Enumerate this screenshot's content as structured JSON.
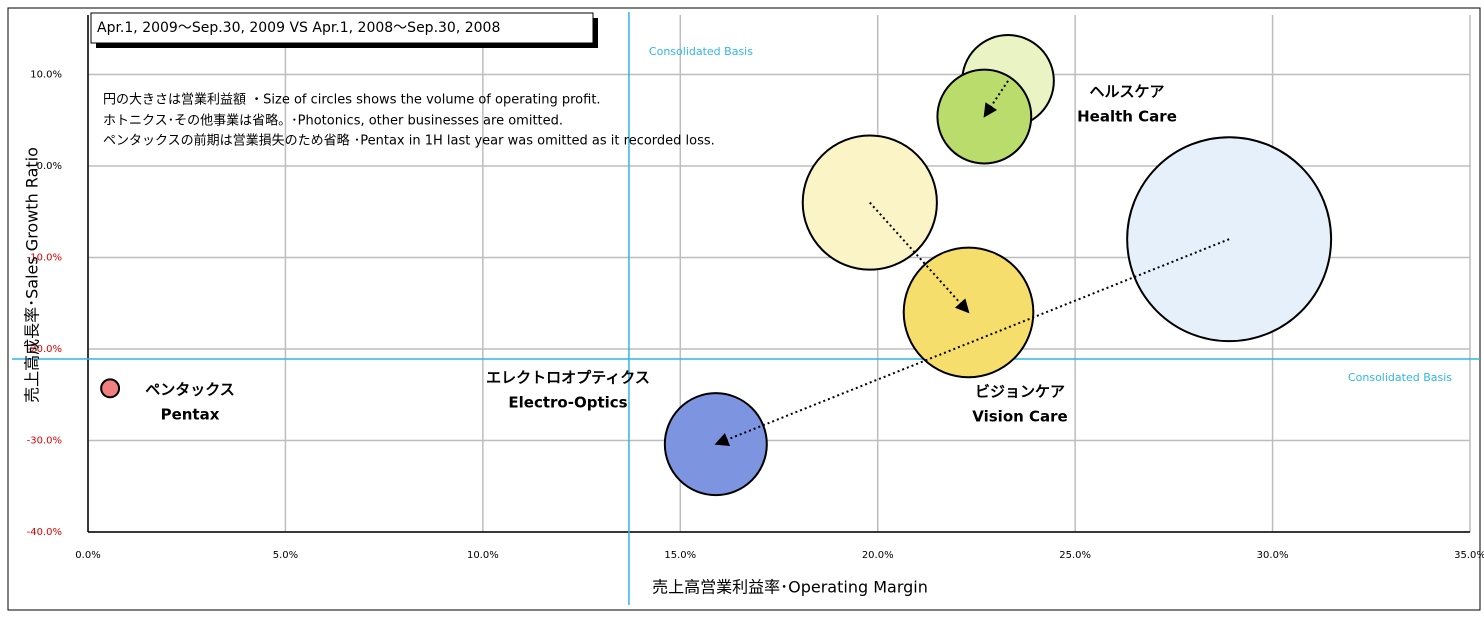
{
  "chart_data": {
    "type": "bubble",
    "title": "Apr.1, 2009〜Sep.30, 2009 VS Apr.1, 2008〜Sep.30, 2008",
    "notes": [
      "円の大きさは営業利益額 ・Size of circles shows the volume of operating profit.",
      "ホトニクス･その他事業は省略。･Photonics, other businesses are omitted.",
      "ペンタックスの前期は営業損失のため省略 ･Pentax in 1H last year was omitted as it recorded loss."
    ],
    "x_label": "売上高営業利益率･Operating Margin",
    "y_label": "売上高成長率･Sales Growth Ratio",
    "xlim": [
      0,
      35
    ],
    "ylim": [
      -40,
      16.5
    ],
    "xticks": [
      {
        "value": 0,
        "label": "0.0%"
      },
      {
        "value": 5,
        "label": "5.0%"
      },
      {
        "value": 10,
        "label": "10.0%"
      },
      {
        "value": 15,
        "label": "15.0%"
      },
      {
        "value": 20,
        "label": "20.0%"
      },
      {
        "value": 25,
        "label": "25.0%"
      },
      {
        "value": 30,
        "label": "30.0%"
      },
      {
        "value": 35,
        "label": "35.0%"
      }
    ],
    "yticks": [
      {
        "value": 10,
        "label": "10.0%"
      },
      {
        "value": 0,
        "label": "0.0%"
      },
      {
        "value": -10,
        "label": "-10.0%"
      },
      {
        "value": -20,
        "label": "-20.0%"
      },
      {
        "value": -30,
        "label": "-30.0%"
      },
      {
        "value": -40,
        "label": "-40.0%"
      }
    ],
    "grid": true,
    "reference_lines": [
      {
        "axis": "x",
        "value": 13.7,
        "label": "Consolidated Basis"
      },
      {
        "axis": "y",
        "value": -21.1,
        "label": "Consolidated Basis"
      }
    ],
    "series": [
      {
        "name": "Health Care",
        "name_ja": "ヘルスケア",
        "colors": [
          "#e9f3c4",
          "#b9dc6c"
        ],
        "x": [
          23.3,
          22.7
        ],
        "values": [
          9.3,
          5.4
        ],
        "sizes": [
          21,
          22
        ]
      },
      {
        "name": "Vision Care",
        "name_ja": "ビジョンケア",
        "colors": [
          "#fbf4c6",
          "#f6de6c"
        ],
        "x": [
          19.8,
          22.3
        ],
        "values": [
          -4.0,
          -16.0
        ],
        "sizes": [
          45,
          42
        ]
      },
      {
        "name": "Electro-Optics",
        "name_ja": "エレクトロオプティクス",
        "colors": [
          "#e5f0fa",
          "#7d94e0"
        ],
        "x": [
          28.9,
          15.9
        ],
        "values": [
          -8.0,
          -30.4
        ],
        "sizes": [
          104,
          26
        ]
      },
      {
        "name": "Pentax",
        "name_ja": "ペンタックス",
        "colors": [
          "#f08080",
          "#f08080"
        ],
        "x": [
          null,
          0.56
        ],
        "values": [
          null,
          -24.3
        ],
        "sizes": [
          null,
          0.8
        ]
      }
    ]
  }
}
